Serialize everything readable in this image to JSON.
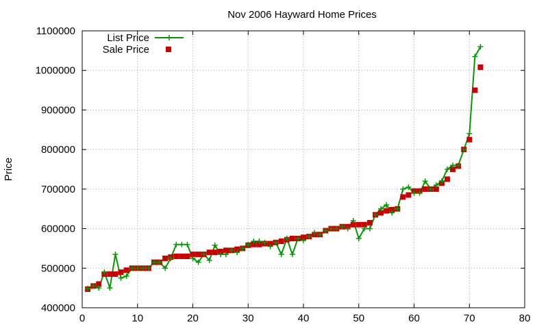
{
  "chart_data": {
    "type": "line",
    "title": "Nov 2006 Hayward Home Prices",
    "xlabel": "",
    "ylabel": "Price",
    "xlim": [
      0,
      80
    ],
    "ylim": [
      400000,
      1100000
    ],
    "x_ticks": [
      0,
      10,
      20,
      30,
      40,
      50,
      60,
      70,
      80
    ],
    "y_ticks": [
      400000,
      500000,
      600000,
      700000,
      800000,
      900000,
      1000000,
      1100000
    ],
    "grid": true,
    "legend_position": "top-left",
    "series": [
      {
        "name": "List Price",
        "color": "#009900",
        "marker": "plus",
        "style": "line-with-points",
        "x": [
          1,
          2,
          3,
          4,
          5,
          6,
          7,
          8,
          9,
          10,
          11,
          12,
          13,
          14,
          15,
          16,
          17,
          18,
          19,
          20,
          21,
          22,
          23,
          24,
          25,
          26,
          27,
          28,
          29,
          30,
          31,
          32,
          33,
          34,
          35,
          36,
          37,
          38,
          39,
          40,
          41,
          42,
          43,
          44,
          45,
          46,
          47,
          48,
          49,
          50,
          51,
          52,
          53,
          54,
          55,
          56,
          57,
          58,
          59,
          60,
          61,
          62,
          63,
          64,
          65,
          66,
          67,
          68,
          69,
          70,
          71,
          72
        ],
        "y": [
          449000,
          455000,
          450000,
          490000,
          450000,
          535000,
          475000,
          480000,
          500000,
          500000,
          500000,
          500000,
          515000,
          515000,
          500000,
          525000,
          560000,
          560000,
          560000,
          525000,
          515000,
          535000,
          520000,
          558000,
          535000,
          535000,
          545000,
          540000,
          550000,
          560000,
          568000,
          568000,
          565000,
          555000,
          565000,
          535000,
          575000,
          535000,
          575000,
          570000,
          580000,
          590000,
          585000,
          595000,
          600000,
          600000,
          605000,
          600000,
          620000,
          575000,
          600000,
          600000,
          635000,
          650000,
          660000,
          640000,
          650000,
          700000,
          705000,
          690000,
          690000,
          720000,
          700000,
          710000,
          720000,
          750000,
          760000,
          760000,
          800000,
          840000,
          1035000,
          1060000
        ]
      },
      {
        "name": "Sale Price",
        "color": "#cc0000",
        "marker": "square",
        "style": "points",
        "x": [
          1,
          2,
          3,
          4,
          5,
          6,
          7,
          8,
          9,
          10,
          11,
          12,
          13,
          14,
          15,
          16,
          17,
          18,
          19,
          20,
          21,
          22,
          23,
          24,
          25,
          26,
          27,
          28,
          29,
          30,
          31,
          32,
          33,
          34,
          35,
          36,
          37,
          38,
          39,
          40,
          41,
          42,
          43,
          44,
          45,
          46,
          47,
          48,
          49,
          50,
          51,
          52,
          53,
          54,
          55,
          56,
          57,
          58,
          59,
          60,
          61,
          62,
          63,
          64,
          65,
          66,
          67,
          68,
          69,
          70,
          71,
          72
        ],
        "y": [
          447000,
          455000,
          460000,
          485000,
          485000,
          485000,
          490000,
          495000,
          500000,
          500000,
          500000,
          500000,
          515000,
          515000,
          525000,
          528000,
          530000,
          530000,
          530000,
          535000,
          535000,
          535000,
          540000,
          540000,
          542000,
          545000,
          545000,
          548000,
          550000,
          558000,
          560000,
          560000,
          562000,
          562000,
          565000,
          568000,
          572000,
          575000,
          575000,
          578000,
          580000,
          585000,
          585000,
          595000,
          600000,
          600000,
          605000,
          605000,
          610000,
          610000,
          610000,
          615000,
          635000,
          640000,
          645000,
          648000,
          650000,
          680000,
          685000,
          695000,
          695000,
          700000,
          700000,
          700000,
          715000,
          725000,
          750000,
          758000,
          800000,
          825000,
          950000,
          1008000
        ]
      }
    ]
  }
}
